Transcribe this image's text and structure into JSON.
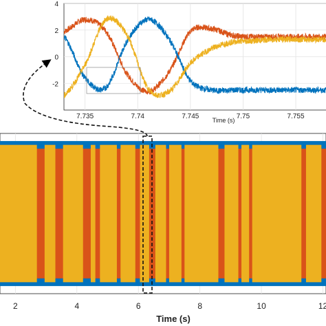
{
  "chart_data": [
    {
      "type": "line",
      "panel": "zoomed-inset",
      "xlabel": "Time (s)",
      "ylabel": "",
      "xlim": [
        7.733,
        7.758
      ],
      "ylim": [
        -4,
        4
      ],
      "xticks": [
        7.735,
        7.74,
        7.745,
        7.75,
        7.755
      ],
      "xtick_labels": [
        "7.735",
        "7.74",
        "7.745",
        "7.75",
        "7.755"
      ],
      "yticks": [
        4,
        2,
        0,
        -2
      ],
      "ytick_labels": [
        "4",
        "2",
        "0",
        "-2"
      ],
      "grid": true,
      "series": [
        {
          "color": "#d95319",
          "x": [
            7.733,
            7.735,
            7.737,
            7.739,
            7.741,
            7.743,
            7.745,
            7.747,
            7.749,
            7.751,
            7.753,
            7.755,
            7.758
          ],
          "y": [
            1.9,
            2.8,
            1.9,
            -1.3,
            -2.6,
            -1.1,
            1.9,
            2.1,
            1.6,
            1.5,
            1.5,
            1.5,
            1.5
          ]
        },
        {
          "color": "#0072bd",
          "x": [
            7.733,
            7.735,
            7.737,
            7.739,
            7.741,
            7.743,
            7.745,
            7.747,
            7.749,
            7.751,
            7.753,
            7.755,
            7.758
          ],
          "y": [
            1.5,
            -1.6,
            -2.3,
            1.2,
            2.8,
            1.3,
            -1.8,
            -2.5,
            -2.5,
            -2.5,
            -2.5,
            -2.5,
            -2.5
          ]
        },
        {
          "color": "#edb120",
          "x": [
            7.733,
            7.735,
            7.737,
            7.739,
            7.741,
            7.743,
            7.745,
            7.747,
            7.749,
            7.751,
            7.753,
            7.755,
            7.758
          ],
          "y": [
            -2.9,
            -0.6,
            2.8,
            1.6,
            -2.4,
            -2.6,
            -0.5,
            0.6,
            1.1,
            1.2,
            1.3,
            1.3,
            1.3
          ]
        }
      ]
    },
    {
      "type": "line",
      "panel": "full-view",
      "xlabel": "Time (s)",
      "ylabel": "",
      "xlim": [
        1.5,
        12.1
      ],
      "ylim": [
        -4.2,
        4.2
      ],
      "xticks": [
        2,
        4,
        6,
        8,
        10,
        12
      ],
      "xtick_labels": [
        "2",
        "4",
        "6",
        "8",
        "10",
        "12"
      ],
      "grid": true,
      "series": [
        {
          "color": "#0072bd",
          "envelope": [
            -3.8,
            3.8
          ]
        },
        {
          "color": "#d95319",
          "envelope": [
            -3.4,
            3.4
          ]
        },
        {
          "color": "#edb120",
          "envelope": [
            -3.6,
            3.6
          ],
          "gaps": [
            [
              2.7,
              2.95
            ],
            [
              3.3,
              3.55
            ],
            [
              4.2,
              4.45
            ],
            [
              4.6,
              4.75
            ],
            [
              5.3,
              5.42
            ],
            [
              5.9,
              6.05
            ],
            [
              6.35,
              6.55
            ],
            [
              6.9,
              7.0
            ],
            [
              7.4,
              7.5
            ],
            [
              8.6,
              8.8
            ],
            [
              9.25,
              9.35
            ],
            [
              9.6,
              9.7
            ],
            [
              11.3,
              11.45
            ],
            [
              11.95,
              12.1
            ]
          ]
        }
      ]
    }
  ]
}
